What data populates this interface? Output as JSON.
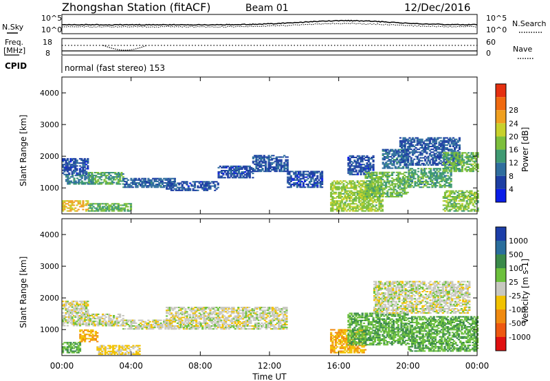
{
  "header": {
    "station": "Zhongshan Station (fitACF)",
    "beam": "Beam 01",
    "date": "12/Dec/2016"
  },
  "noise_panel": {
    "left_label": "N.Sky",
    "right_label": "N.Search",
    "left_ticks": [
      "10^5",
      "10^0"
    ],
    "right_ticks": [
      "10^5",
      "10^0"
    ]
  },
  "freq_panel": {
    "left_label_1": "Freq.",
    "left_label_2": "[MHz]",
    "right_label": "Nave",
    "left_ticks": [
      "18",
      "8"
    ],
    "right_ticks": [
      "60",
      "0"
    ]
  },
  "cpid": {
    "label": "CPID",
    "text": "normal (fast stereo) 153"
  },
  "axes": {
    "xlabel": "Time UT",
    "x_ticks": [
      "00:00",
      "04:00",
      "08:00",
      "12:00",
      "16:00",
      "20:00",
      "00:00"
    ],
    "ylabel": "Slant Range [km]",
    "y_ticks": [
      "1000",
      "2000",
      "3000",
      "4000"
    ]
  },
  "power_scale": {
    "label": "Power [dB]",
    "ticks": [
      "4",
      "8",
      "12",
      "16",
      "20",
      "24",
      "28"
    ],
    "colors": [
      "#0a1de8",
      "#1d3fa3",
      "#2f6e9e",
      "#3f9a72",
      "#7dbf3c",
      "#c8d12b",
      "#f0a020",
      "#f06a10",
      "#e53010"
    ]
  },
  "velocity_scale": {
    "label": "Velocity [m s-1]",
    "ticks": [
      "1000",
      "500",
      "100",
      "25",
      "-25",
      "-100",
      "-500",
      "-1000"
    ],
    "colors": [
      "#1c3ea8",
      "#2a6e9c",
      "#3a8a4a",
      "#6cc03c",
      "#c8c8c0",
      "#f2c200",
      "#f08a10",
      "#ee5810",
      "#e01010"
    ]
  },
  "chart_data": [
    {
      "type": "heatmap",
      "title": "Power",
      "xlabel": "Time UT",
      "ylabel": "Slant Range [km]",
      "xlim": [
        0,
        24
      ],
      "ylim": [
        180,
        4500
      ],
      "colorbar_label": "Power [dB]",
      "colorbar_range": [
        0,
        32
      ],
      "regions": [
        {
          "t": [
            0.0,
            1.5
          ],
          "r": [
            1400,
            1900
          ],
          "v": 6
        },
        {
          "t": [
            0.2,
            2.0
          ],
          "r": [
            1100,
            1400
          ],
          "v": 10
        },
        {
          "t": [
            1.5,
            3.5
          ],
          "r": [
            1100,
            1500
          ],
          "v": 13
        },
        {
          "t": [
            3.5,
            6.5
          ],
          "r": [
            1000,
            1300
          ],
          "v": 8
        },
        {
          "t": [
            0.0,
            1.5
          ],
          "r": [
            250,
            600
          ],
          "v": 22
        },
        {
          "t": [
            1.5,
            4.0
          ],
          "r": [
            250,
            500
          ],
          "v": 14
        },
        {
          "t": [
            6.0,
            9.0
          ],
          "r": [
            900,
            1200
          ],
          "v": 6
        },
        {
          "t": [
            9.0,
            11.0
          ],
          "r": [
            1300,
            1700
          ],
          "v": 6
        },
        {
          "t": [
            11.0,
            13.0
          ],
          "r": [
            1500,
            2000
          ],
          "v": 7
        },
        {
          "t": [
            13.0,
            15.0
          ],
          "r": [
            1000,
            1500
          ],
          "v": 6
        },
        {
          "t": [
            15.5,
            18.5
          ],
          "r": [
            250,
            1200
          ],
          "v": 17
        },
        {
          "t": [
            16.5,
            18.0
          ],
          "r": [
            1400,
            2000
          ],
          "v": 6
        },
        {
          "t": [
            17.5,
            20.0
          ],
          "r": [
            700,
            1500
          ],
          "v": 15
        },
        {
          "t": [
            18.5,
            20.0
          ],
          "r": [
            1600,
            2200
          ],
          "v": 9
        },
        {
          "t": [
            19.5,
            23.0
          ],
          "r": [
            1700,
            2600
          ],
          "v": 7
        },
        {
          "t": [
            20.0,
            22.5
          ],
          "r": [
            1000,
            1600
          ],
          "v": 13
        },
        {
          "t": [
            22.0,
            24.0
          ],
          "r": [
            1500,
            2100
          ],
          "v": 15
        },
        {
          "t": [
            22.0,
            24.0
          ],
          "r": [
            250,
            900
          ],
          "v": 16
        }
      ]
    },
    {
      "type": "heatmap",
      "title": "Velocity",
      "xlabel": "Time UT",
      "ylabel": "Slant Range [km]",
      "xlim": [
        0,
        24
      ],
      "ylim": [
        180,
        4500
      ],
      "colorbar_label": "Velocity [m s-1]",
      "colorbar_range": [
        -1000,
        1000
      ],
      "regions": [
        {
          "t": [
            0.0,
            1.5
          ],
          "r": [
            1100,
            1900
          ],
          "v": 0
        },
        {
          "t": [
            1.5,
            3.5
          ],
          "r": [
            1100,
            1500
          ],
          "v": 0
        },
        {
          "t": [
            3.5,
            6.5
          ],
          "r": [
            1000,
            1300
          ],
          "v": 0
        },
        {
          "t": [
            0.0,
            1.0
          ],
          "r": [
            250,
            600
          ],
          "v": 300
        },
        {
          "t": [
            1.0,
            2.0
          ],
          "r": [
            600,
            1000
          ],
          "v": -300
        },
        {
          "t": [
            2.0,
            4.5
          ],
          "r": [
            200,
            500
          ],
          "v": -150
        },
        {
          "t": [
            6.0,
            13.0
          ],
          "r": [
            1000,
            1700
          ],
          "v": 0
        },
        {
          "t": [
            15.5,
            17.5
          ],
          "r": [
            250,
            1000
          ],
          "v": -300
        },
        {
          "t": [
            16.5,
            20.0
          ],
          "r": [
            500,
            1500
          ],
          "v": 300
        },
        {
          "t": [
            18.0,
            23.5
          ],
          "r": [
            1500,
            2500
          ],
          "v": 0
        },
        {
          "t": [
            20.0,
            24.0
          ],
          "r": [
            300,
            1400
          ],
          "v": 300
        }
      ]
    }
  ]
}
